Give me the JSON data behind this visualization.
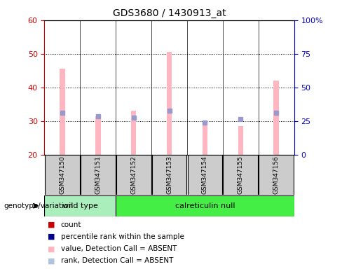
{
  "title": "GDS3680 / 1430913_at",
  "samples": [
    "GSM347150",
    "GSM347151",
    "GSM347152",
    "GSM347153",
    "GSM347154",
    "GSM347155",
    "GSM347156"
  ],
  "pink_values": [
    45.5,
    31.5,
    33.0,
    50.5,
    29.0,
    28.5,
    42.0
  ],
  "blue_values": [
    32.5,
    31.5,
    31.0,
    33.0,
    29.5,
    30.5,
    32.5
  ],
  "ymin": 20,
  "ymax": 60,
  "y2min": 0,
  "y2max": 100,
  "yticks": [
    20,
    30,
    40,
    50,
    60
  ],
  "y2ticks": [
    0,
    25,
    50,
    75,
    100
  ],
  "y2ticklabels": [
    "0",
    "25",
    "50",
    "75",
    "100%"
  ],
  "groups": [
    {
      "label": "wild type",
      "start": 0,
      "end": 2,
      "color": "#AAEEBB"
    },
    {
      "label": "calreticulin null",
      "start": 2,
      "end": 7,
      "color": "#44EE44"
    }
  ],
  "genotype_label": "genotype/variation",
  "bar_color": "#FFB6C1",
  "dot_color": "#9999CC",
  "left_axis_color": "#CC0000",
  "right_axis_color": "#0000CC",
  "bg_color": "#FFFFFF",
  "label_box_color": "#CCCCCC",
  "figsize": [
    4.88,
    3.84
  ],
  "dpi": 100
}
